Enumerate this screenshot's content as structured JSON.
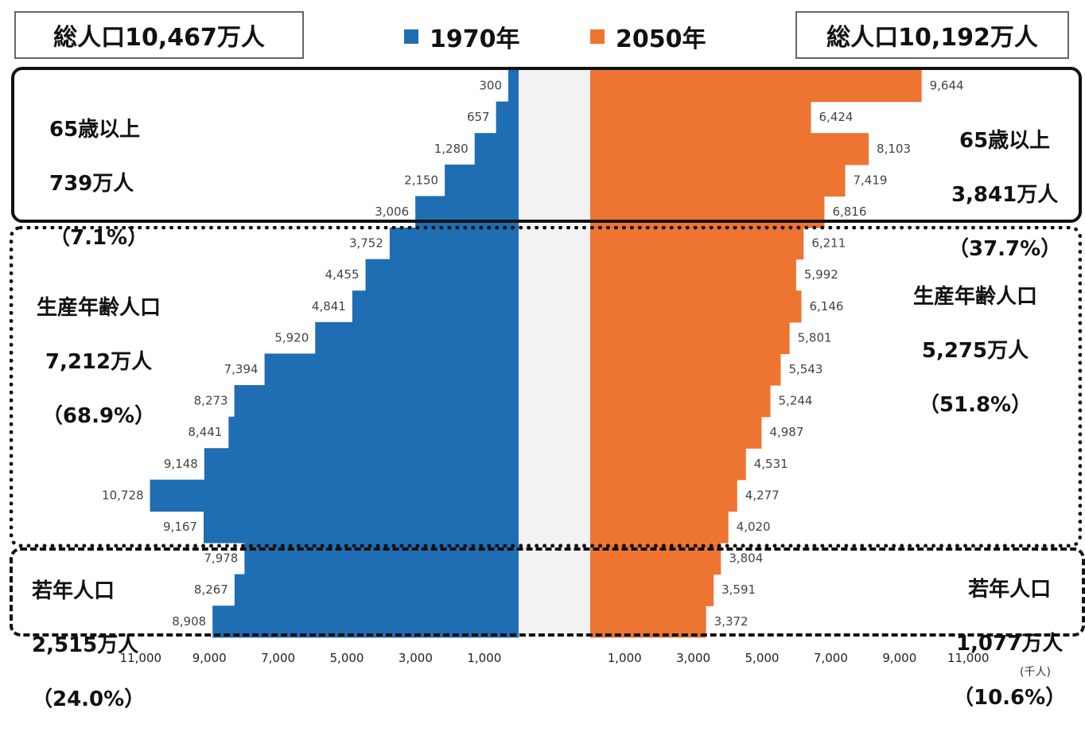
{
  "chart_data": {
    "type": "bar",
    "orientation": "horizontal-population-pyramid",
    "series": [
      {
        "name": "1970年",
        "color": "#1f6db3",
        "total_label": "総人口10,467万人",
        "values": [
          300,
          657,
          1280,
          2150,
          3006,
          3752,
          4455,
          4841,
          5920,
          7394,
          8273,
          8441,
          9148,
          10728,
          9167,
          7978,
          8267,
          8908
        ],
        "value_labels": [
          "300",
          "657",
          "1,280",
          "2,150",
          "3,006",
          "3,752",
          "4,455",
          "4,841",
          "5,920",
          "7,394",
          "8,273",
          "8,441",
          "9,148",
          "10,728",
          "9,167",
          "7,978",
          "8,267",
          "8,908"
        ]
      },
      {
        "name": "2050年",
        "color": "#ee7432",
        "total_label": "総人口10,192万人",
        "values": [
          9644,
          6424,
          8103,
          7419,
          6816,
          6211,
          5992,
          6146,
          5801,
          5543,
          5244,
          4987,
          4531,
          4277,
          4020,
          3804,
          3591,
          3372
        ],
        "value_labels": [
          "9,644",
          "6,424",
          "8,103",
          "7,419",
          "6,816",
          "6,211",
          "5,992",
          "6,146",
          "5,801",
          "5,543",
          "5,244",
          "4,987",
          "4,531",
          "4,277",
          "4,020",
          "3,804",
          "3,591",
          "3,372"
        ]
      }
    ],
    "xlim": [
      0,
      11000
    ],
    "x_ticks": [
      1000,
      3000,
      5000,
      7000,
      9000,
      11000
    ],
    "x_tick_labels": [
      "1,000",
      "3,000",
      "5,000",
      "7,000",
      "9,000",
      "11,000"
    ],
    "unit_label": "(千人)",
    "groups": [
      {
        "key": "elderly",
        "rows": [
          0,
          4
        ],
        "style": "solid",
        "left": {
          "name": "65歳以上",
          "value": "739万人",
          "share": "（7.1%）"
        },
        "right": {
          "name": "65歳以上",
          "value": "3,841万人",
          "share": "（37.7%）"
        }
      },
      {
        "key": "working",
        "rows": [
          5,
          14
        ],
        "style": "dotted",
        "left": {
          "name": "生産年齢人口",
          "value": "7,212万人",
          "share": "（68.9%）"
        },
        "right": {
          "name": "生産年齢人口",
          "value": "5,275万人",
          "share": "（51.8%）"
        }
      },
      {
        "key": "young",
        "rows": [
          15,
          17
        ],
        "style": "dashed",
        "left": {
          "name": "若年人口",
          "value": "2,515万人",
          "share": "（24.0%）"
        },
        "right": {
          "name": "若年人口",
          "value": "1,077万人",
          "share": "（10.6%）"
        }
      }
    ]
  }
}
